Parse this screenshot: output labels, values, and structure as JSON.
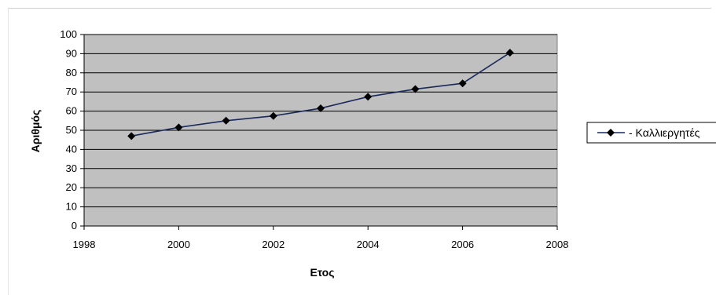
{
  "chart_data": {
    "type": "line",
    "xlabel": "Ετος",
    "ylabel": "Αριθμός",
    "xlim": [
      1998,
      2008
    ],
    "ylim": [
      0,
      100
    ],
    "xticks": [
      "1998",
      "2000",
      "2002",
      "2004",
      "2006",
      "2008"
    ],
    "yticks": [
      "0",
      "10",
      "20",
      "30",
      "40",
      "50",
      "60",
      "70",
      "80",
      "90",
      "100"
    ],
    "grid": true,
    "legend_position": "right",
    "plot_background": "#c0c0c0",
    "line_color": "#1a2a5a",
    "series": [
      {
        "name": "Καλλιεργητές",
        "x": [
          1999,
          2000,
          2001,
          2002,
          2003,
          2004,
          2005,
          2006,
          2007
        ],
        "y": [
          47,
          51.5,
          55,
          57.5,
          61.5,
          67.5,
          71.5,
          74.5,
          90.5
        ]
      }
    ]
  }
}
